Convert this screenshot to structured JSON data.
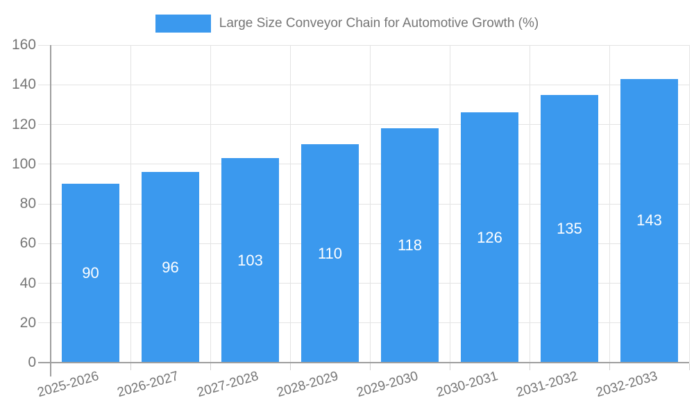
{
  "chart_data": {
    "type": "bar",
    "title": "Large Size Conveyor Chain for Automotive Growth (%)",
    "categories": [
      "2025-2026",
      "2026-2027",
      "2027-2028",
      "2028-2029",
      "2029-2030",
      "2030-2031",
      "2031-2032",
      "2032-2033"
    ],
    "values": [
      90,
      96,
      103,
      110,
      118,
      126,
      135,
      143
    ],
    "data_labels": [
      "90",
      "96",
      "103",
      "110",
      "118",
      "126",
      "135",
      "143"
    ],
    "xlabel": "",
    "ylabel": "",
    "ylim": [
      0,
      160
    ],
    "ytick_step": 20,
    "yticks": [
      0,
      20,
      40,
      60,
      80,
      100,
      120,
      140,
      160
    ],
    "grid": "on",
    "legend_position": "top-center",
    "colors": {
      "bar": "#3b99ee",
      "data_label_text": "#ffffff",
      "axis_text": "#757575",
      "axis_line": "#9e9e9e",
      "gridline": "#e3e3e3",
      "background": "#ffffff"
    }
  }
}
